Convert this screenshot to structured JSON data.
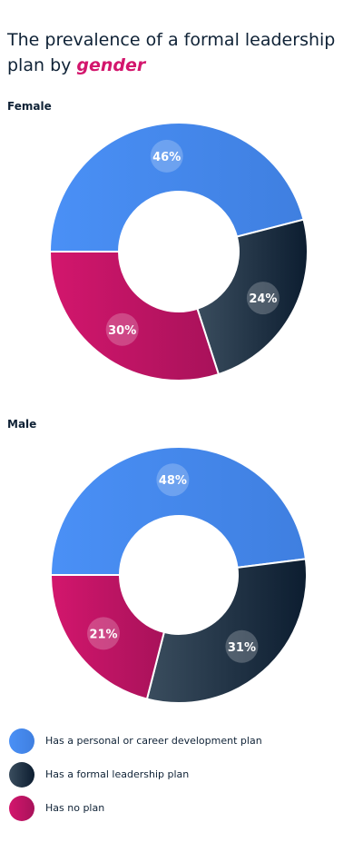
{
  "title": {
    "prefix": "The prevalence of a formal leadership plan by",
    "accent": "gender"
  },
  "colors": {
    "blue": "#4a90f6",
    "navy": "#0c1d30",
    "pink": "#d3166d"
  },
  "legend": [
    {
      "label": "Has a personal or career development plan",
      "color": "blue"
    },
    {
      "label": "Has a formal leadership plan",
      "color": "navy"
    },
    {
      "label": "Has no plan",
      "color": "pink"
    }
  ],
  "chart_data": [
    {
      "type": "pie",
      "title": "Female",
      "categories": [
        "Has a personal or career development plan",
        "Has a formal leadership plan",
        "Has no plan"
      ],
      "values": [
        46,
        24,
        30
      ],
      "labels": [
        "46%",
        "24%",
        "30%"
      ]
    },
    {
      "type": "pie",
      "title": "Male",
      "categories": [
        "Has a personal or career development plan",
        "Has a formal leadership plan",
        "Has no plan"
      ],
      "values": [
        48,
        31,
        21
      ],
      "labels": [
        "48%",
        "31%",
        "21%"
      ]
    }
  ]
}
